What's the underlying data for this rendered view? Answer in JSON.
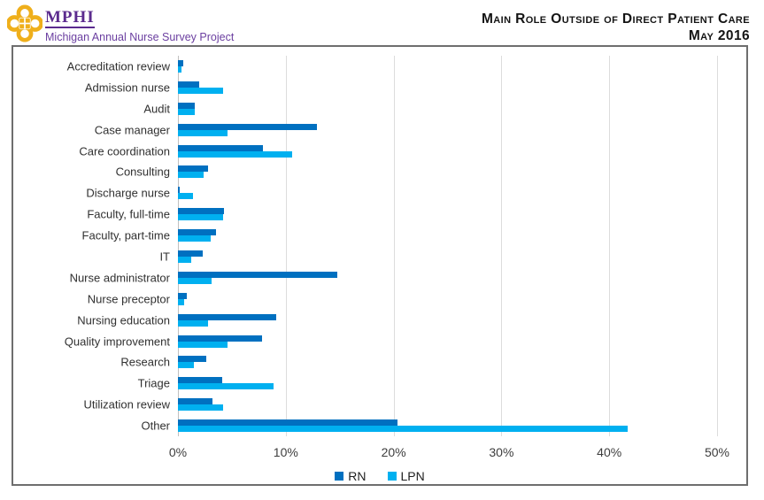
{
  "header": {
    "logo_acronym": "MPHI",
    "logo_subtitle": "Michigan Annual Nurse Survey Project",
    "brand_purple": "#5B2B8E",
    "brand_gold": "#EFAF1B",
    "title_line1": "Main Role Outside of Direct Patient Care",
    "title_line2": "May 2016"
  },
  "chart_data": {
    "type": "bar",
    "orientation": "horizontal",
    "title": "Main Role Outside of Direct Patient Care",
    "subtitle": "May 2016",
    "categories": [
      "Accreditation review",
      "Admission nurse",
      "Audit",
      "Case manager",
      "Care coordination",
      "Consulting",
      "Discharge nurse",
      "Faculty, full-time",
      "Faculty, part-time",
      "IT",
      "Nurse administrator",
      "Nurse preceptor",
      "Nursing education",
      "Quality improvement",
      "Research",
      "Triage",
      "Utilization review",
      "Other"
    ],
    "series": [
      {
        "name": "RN",
        "color": "#0070C0",
        "values": [
          0.5,
          2.0,
          1.6,
          12.9,
          7.9,
          2.8,
          0.2,
          4.3,
          3.5,
          2.3,
          14.8,
          0.8,
          9.1,
          7.8,
          2.6,
          4.1,
          3.2,
          20.4
        ]
      },
      {
        "name": "LPN",
        "color": "#00B0F0",
        "values": [
          0.3,
          4.2,
          1.6,
          4.6,
          10.6,
          2.4,
          1.4,
          4.2,
          3.0,
          1.2,
          3.1,
          0.6,
          2.8,
          4.6,
          1.5,
          8.9,
          4.2,
          41.7
        ]
      }
    ],
    "value_unit": "%",
    "xlim": [
      0,
      50
    ],
    "x_ticks": [
      "0%",
      "10%",
      "20%",
      "30%",
      "40%",
      "50%"
    ],
    "x_tick_values": [
      0,
      10,
      20,
      30,
      40,
      50
    ],
    "grid": "vertical",
    "legend_position": "bottom"
  }
}
